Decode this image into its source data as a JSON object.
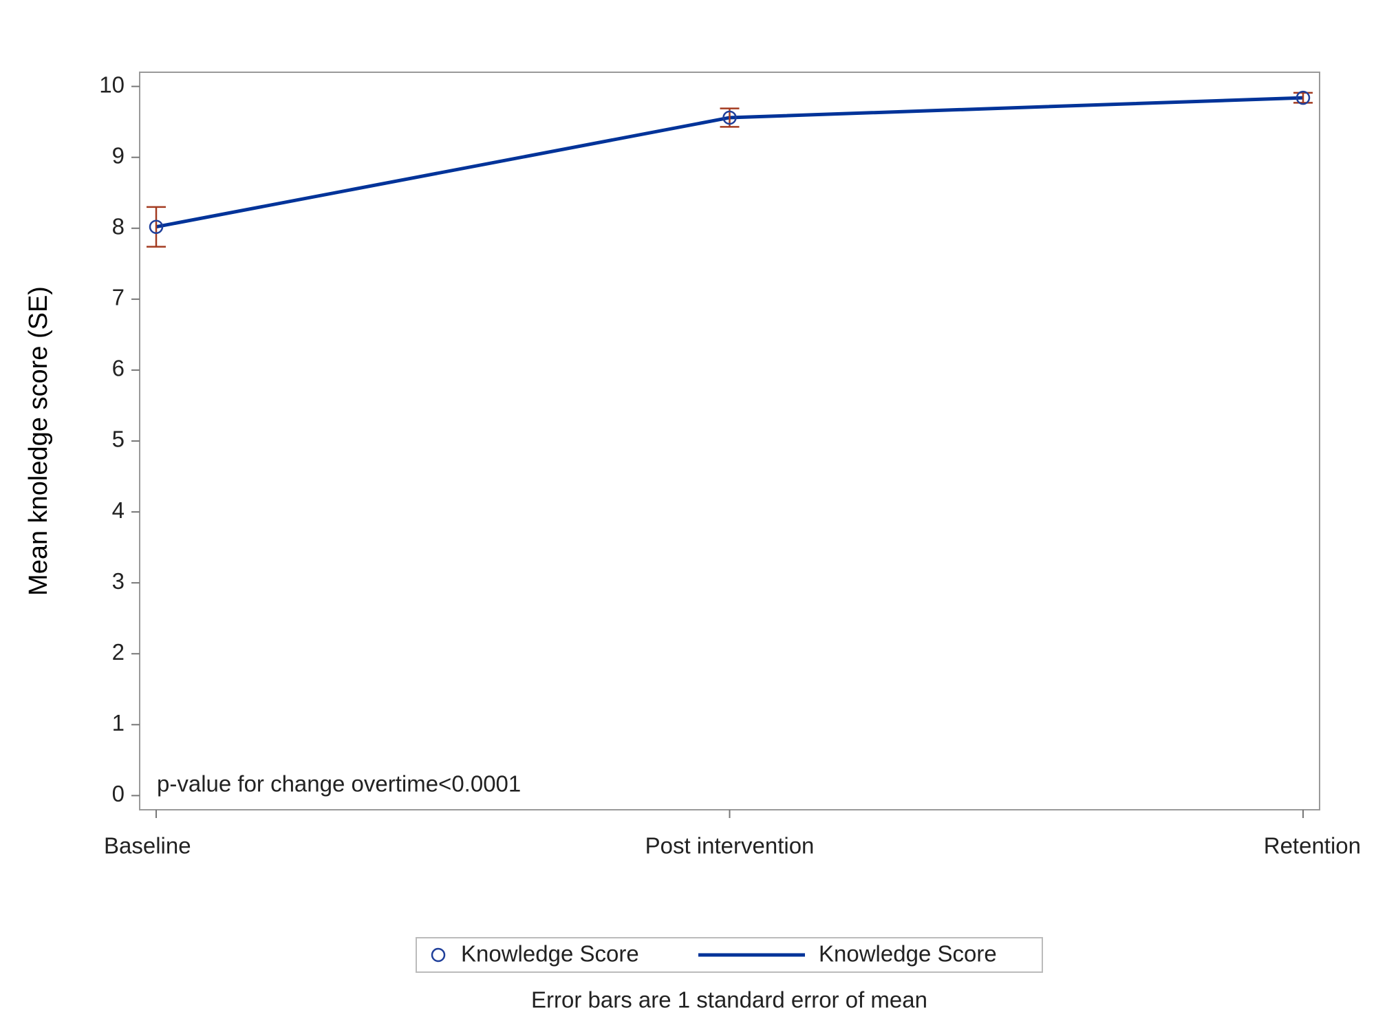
{
  "chart_data": {
    "type": "line",
    "y_label": "Mean knoledge score (SE)",
    "annotation": "p-value for change overtime<0.0001",
    "footnote": "Error bars are 1 standard error of mean",
    "categories": [
      "Baseline",
      "Post intervention",
      "Retention"
    ],
    "series": [
      {
        "name": "Knowledge Score",
        "mark": "circle",
        "color": "#1f3f9a",
        "error_color": "#a33b20",
        "values": [
          8.02,
          9.56,
          9.84
        ],
        "errors": [
          0.28,
          0.13,
          0.07
        ]
      },
      {
        "name": "Knowledge Score",
        "mark": "line",
        "color": "#003399",
        "values": [
          8.02,
          9.56,
          9.84
        ]
      }
    ],
    "ylim": [
      -0.2,
      10.2
    ],
    "yticks": [
      0,
      1,
      2,
      3,
      4,
      5,
      6,
      7,
      8,
      9,
      10
    ]
  }
}
